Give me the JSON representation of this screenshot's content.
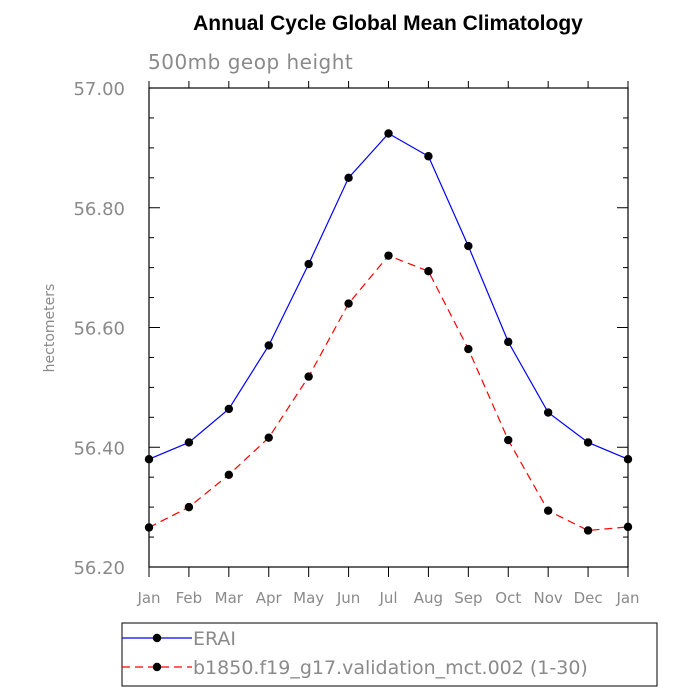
{
  "chart_data": {
    "type": "line",
    "title": "Annual Cycle Global Mean Climatology",
    "subtitle": "500mb geop height",
    "ylabel": "hectometers",
    "xlabel": "",
    "categories": [
      "Jan",
      "Feb",
      "Mar",
      "Apr",
      "May",
      "Jun",
      "Jul",
      "Aug",
      "Sep",
      "Oct",
      "Nov",
      "Dec",
      "Jan"
    ],
    "ylim": [
      56.2,
      57.0
    ],
    "yticks": [
      "56.20",
      "56.40",
      "56.60",
      "56.80",
      "57.00"
    ],
    "grid": false,
    "legend_position": "bottom",
    "series": [
      {
        "name": "ERAI",
        "color": "#0000ff",
        "line_style": "solid",
        "marker": "filled-circle",
        "values": [
          56.38,
          56.408,
          56.464,
          56.57,
          56.706,
          56.85,
          56.924,
          56.886,
          56.736,
          56.576,
          56.458,
          56.408,
          56.38
        ]
      },
      {
        "name": "b1850.f19_g17.validation_mct.002 (1-30)",
        "color": "#ff0000",
        "line_style": "dashed",
        "marker": "filled-circle",
        "values": [
          56.266,
          56.3,
          56.354,
          56.416,
          56.518,
          56.64,
          56.72,
          56.694,
          56.564,
          56.412,
          56.294,
          56.261,
          56.267
        ]
      }
    ]
  }
}
